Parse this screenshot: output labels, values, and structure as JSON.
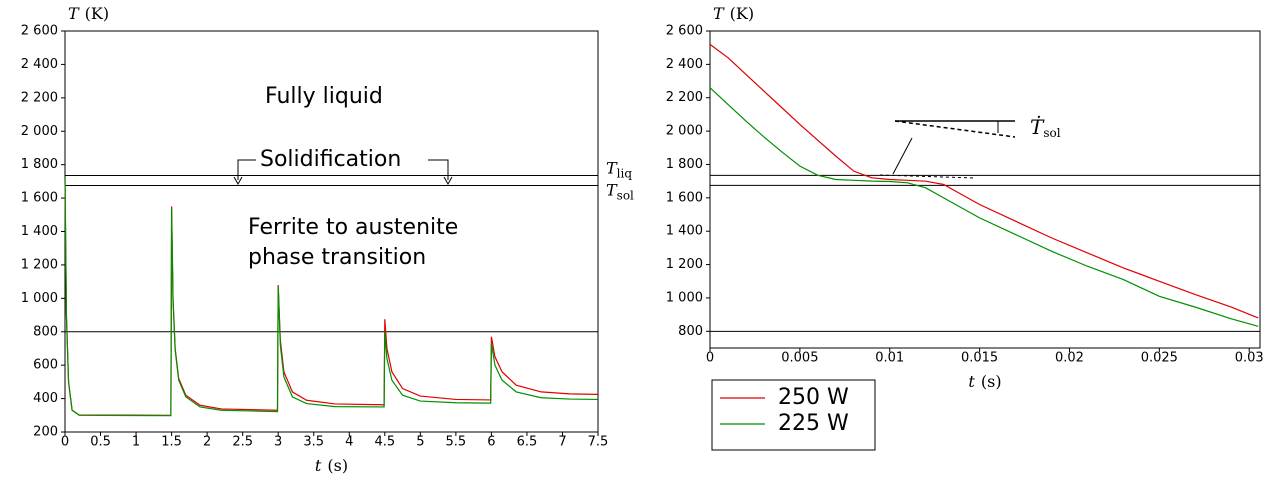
{
  "chart_data": [
    {
      "type": "line",
      "ylabel": {
        "symbol": "T",
        "unit": "(K)"
      },
      "xlabel": {
        "symbol": "t",
        "unit": "(s)"
      },
      "x": [
        0,
        0.02,
        0.05,
        0.1,
        0.2,
        1.49,
        1.5,
        1.52,
        1.55,
        1.6,
        1.7,
        1.9,
        2.2,
        2.99,
        3.0,
        3.03,
        3.08,
        3.2,
        3.4,
        3.8,
        4.49,
        4.5,
        4.53,
        4.6,
        4.75,
        5.0,
        5.5,
        5.99,
        6.0,
        6.05,
        6.15,
        6.35,
        6.7,
        7.1,
        7.5
      ],
      "series": [
        {
          "color": "#e00000",
          "values": [
            1720,
            900,
            500,
            330,
            302,
            300,
            1550,
            1000,
            700,
            520,
            420,
            360,
            338,
            330,
            1080,
            750,
            560,
            440,
            390,
            368,
            363,
            875,
            700,
            560,
            460,
            415,
            395,
            392,
            770,
            650,
            560,
            480,
            440,
            428,
            425
          ]
        },
        {
          "color": "#009000",
          "values": [
            1720,
            900,
            500,
            330,
            300,
            298,
            1540,
            990,
            690,
            510,
            410,
            350,
            330,
            322,
            1070,
            720,
            530,
            410,
            370,
            352,
            350,
            800,
            640,
            510,
            420,
            385,
            375,
            373,
            730,
            600,
            510,
            440,
            405,
            397,
            395
          ]
        }
      ],
      "xlim": [
        0,
        7.5
      ],
      "xticks": [
        0,
        0.5,
        1,
        1.5,
        2,
        2.5,
        3,
        3.5,
        4,
        4.5,
        5,
        5.5,
        6,
        6.5,
        7,
        7.5
      ],
      "ylim": [
        200,
        2600
      ],
      "yticks": [
        200,
        400,
        600,
        800,
        {
          "value": 1000,
          "label": "1 000"
        },
        {
          "value": 1200,
          "label": "1 200"
        },
        {
          "value": 1400,
          "label": "1 400"
        },
        {
          "value": 1600,
          "label": "1 600"
        },
        {
          "value": 1800,
          "label": "1 800"
        },
        {
          "value": 2000,
          "label": "2 000"
        },
        {
          "value": 2200,
          "label": "2 200"
        },
        {
          "value": 2400,
          "label": "2 400"
        },
        {
          "value": 2600,
          "label": "2 600"
        }
      ],
      "hlines": [
        {
          "value": 1735,
          "symbol": "T",
          "subscript": "liq"
        },
        {
          "value": 1675,
          "symbol": "T",
          "subscript": "sol"
        },
        800
      ],
      "annotations": [
        "Fully liquid",
        "Solidification",
        "Ferrite to austenite",
        "phase transition"
      ]
    },
    {
      "type": "line",
      "ylabel": {
        "symbol": "T",
        "unit": "(K)"
      },
      "xlabel": {
        "symbol": "t",
        "unit": "(s)"
      },
      "x": [
        0,
        0.001,
        0.002,
        0.003,
        0.004,
        0.005,
        0.006,
        0.007,
        0.008,
        0.009,
        0.01,
        0.011,
        0.012,
        0.013,
        0.014,
        0.015,
        0.017,
        0.019,
        0.021,
        0.023,
        0.025,
        0.027,
        0.029,
        0.0305
      ],
      "series": [
        {
          "name": "250 W",
          "color": "#e00000",
          "values": [
            2520,
            2440,
            2340,
            2240,
            2140,
            2040,
            1945,
            1850,
            1760,
            1720,
            1710,
            1705,
            1700,
            1680,
            1620,
            1560,
            1460,
            1360,
            1270,
            1180,
            1100,
            1020,
            945,
            880
          ]
        },
        {
          "name": "225 W",
          "color": "#009000",
          "values": [
            2260,
            2160,
            2060,
            1965,
            1875,
            1790,
            1735,
            1710,
            1705,
            1700,
            1698,
            1690,
            1660,
            1600,
            1540,
            1480,
            1380,
            1280,
            1190,
            1110,
            1010,
            945,
            875,
            830
          ]
        }
      ],
      "xlim": [
        0,
        0.0306
      ],
      "xticks": [
        0,
        0.005,
        0.01,
        0.015,
        0.02,
        0.025,
        0.03
      ],
      "ylim": [
        700,
        2600
      ],
      "yticks": [
        800,
        {
          "value": 1000,
          "label": "1 000"
        },
        {
          "value": 1200,
          "label": "1 200"
        },
        {
          "value": 1400,
          "label": "1 400"
        },
        {
          "value": 1600,
          "label": "1 600"
        },
        {
          "value": 1800,
          "label": "1 800"
        },
        {
          "value": 2000,
          "label": "2 000"
        },
        {
          "value": 2200,
          "label": "2 200"
        },
        {
          "value": 2400,
          "label": "2 400"
        },
        {
          "value": 2600,
          "label": "2 600"
        }
      ],
      "hlines": [
        1735,
        1675,
        800
      ],
      "annotations": [
        {
          "symbol": "Ṫ",
          "subscript": "sol"
        }
      ],
      "legend": "below-left"
    }
  ]
}
